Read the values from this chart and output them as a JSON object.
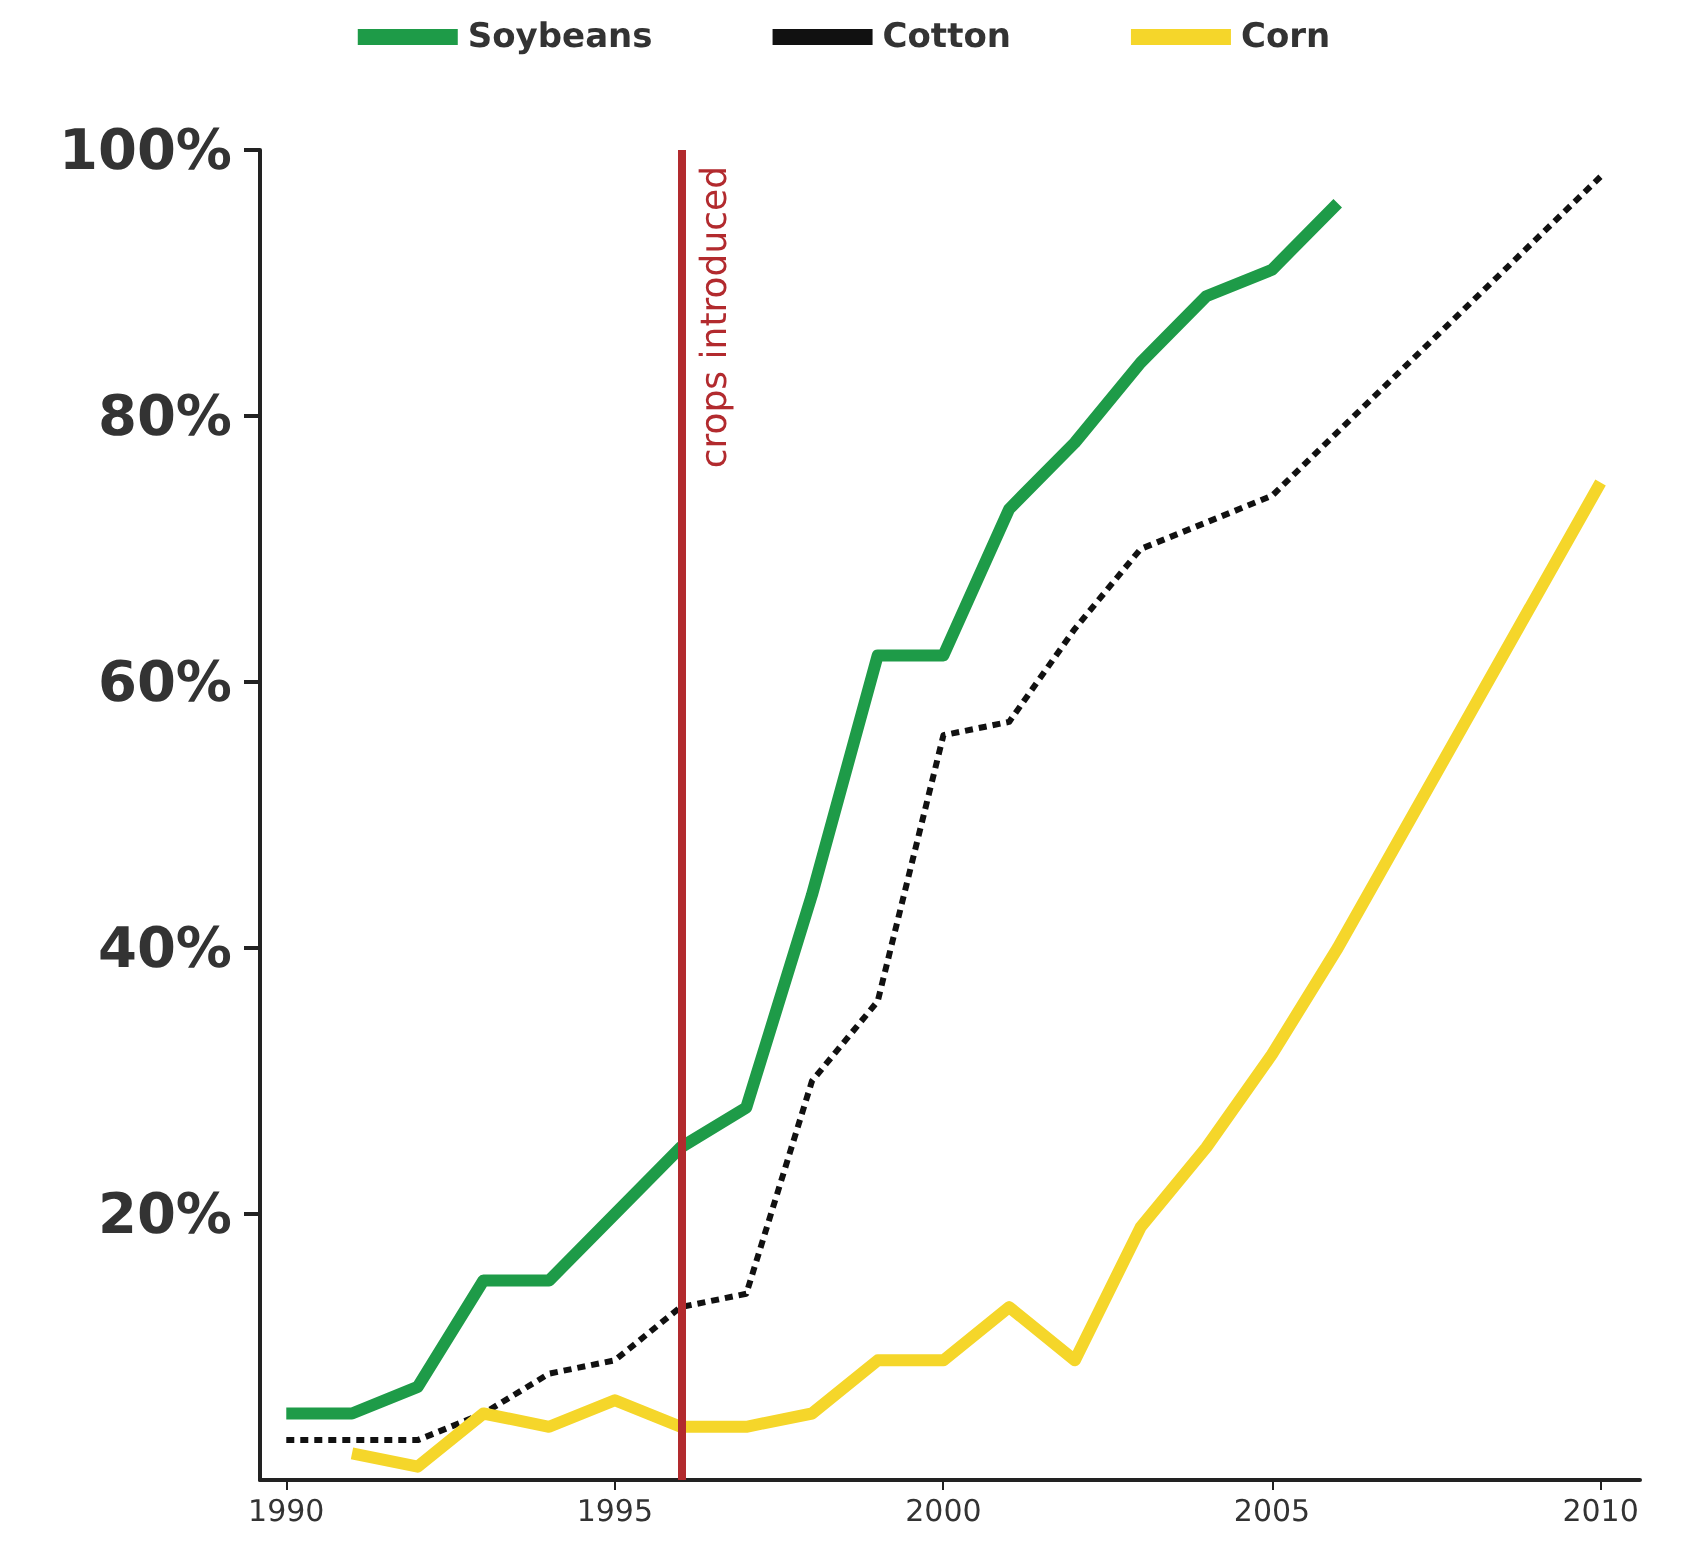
{
  "chart_data": {
    "type": "line",
    "legend": "top",
    "marker": "none",
    "grid": false,
    "xlim": [
      1989.6,
      2010.6
    ],
    "xticks": [
      1990,
      1995,
      2000,
      2005,
      2010
    ],
    "ylim": [
      0,
      100
    ],
    "yticks": [
      {
        "value": 20,
        "label": "20%"
      },
      {
        "value": 40,
        "label": "40%"
      },
      {
        "value": 60,
        "label": "60%"
      },
      {
        "value": 80,
        "label": "80%"
      },
      {
        "value": 100,
        "label": "100%"
      }
    ],
    "series": [
      {
        "name": "Soybeans",
        "color": "#1e9b48",
        "line_style": "solid",
        "x": [
          1990,
          1991,
          1992,
          1993,
          1994,
          1995,
          1996,
          1997,
          1998,
          1999,
          2000,
          2001,
          2002,
          2003,
          2004,
          2005,
          2006
        ],
        "values": [
          5,
          5,
          7,
          15,
          15,
          20,
          25,
          28,
          44,
          62,
          62,
          73,
          78,
          84,
          89,
          91,
          96
        ]
      },
      {
        "name": "Cotton",
        "color": "#111111",
        "line_style": "dashed",
        "x": [
          1990,
          1991,
          1992,
          1993,
          1994,
          1995,
          1996,
          1997,
          1998,
          1999,
          2000,
          2001,
          2002,
          2003,
          2004,
          2005,
          2010
        ],
        "values": [
          3,
          3,
          3,
          5,
          8,
          9,
          13,
          14,
          30,
          36,
          56,
          57,
          64,
          70,
          72,
          74,
          98
        ]
      },
      {
        "name": "Corn",
        "color": "#f5d62a",
        "line_style": "solid",
        "x": [
          1991,
          1992,
          1993,
          1994,
          1995,
          1996,
          1997,
          1998,
          1999,
          2000,
          2001,
          2002,
          2003,
          2004,
          2005,
          2006,
          2010
        ],
        "values": [
          2,
          1,
          5,
          4,
          6,
          4,
          4,
          5,
          9,
          9,
          13,
          9,
          19,
          25,
          32,
          40,
          75
        ]
      }
    ],
    "ref_lines": [
      {
        "axis": "x",
        "value": 1996,
        "label": "crops introduced",
        "color": "#b22a2e"
      }
    ]
  }
}
